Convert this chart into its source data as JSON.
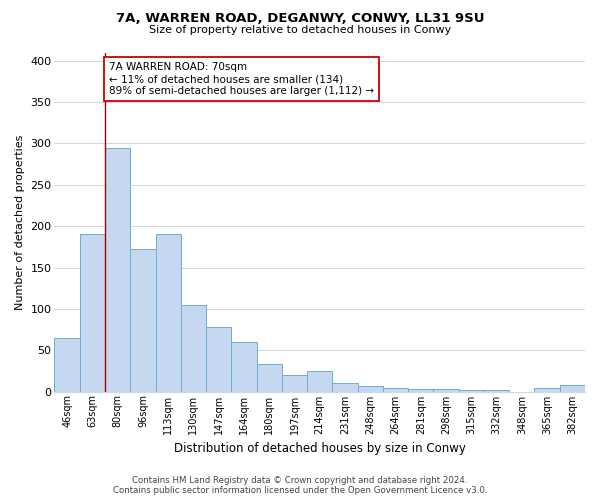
{
  "title": "7A, WARREN ROAD, DEGANWY, CONWY, LL31 9SU",
  "subtitle": "Size of property relative to detached houses in Conwy",
  "xlabel": "Distribution of detached houses by size in Conwy",
  "ylabel": "Number of detached properties",
  "categories": [
    "46sqm",
    "63sqm",
    "80sqm",
    "96sqm",
    "113sqm",
    "130sqm",
    "147sqm",
    "164sqm",
    "180sqm",
    "197sqm",
    "214sqm",
    "231sqm",
    "248sqm",
    "264sqm",
    "281sqm",
    "298sqm",
    "315sqm",
    "332sqm",
    "348sqm",
    "365sqm",
    "382sqm"
  ],
  "values": [
    65,
    190,
    295,
    172,
    190,
    105,
    78,
    60,
    33,
    20,
    25,
    10,
    7,
    5,
    3,
    3,
    2,
    2,
    0,
    5,
    8
  ],
  "bar_color": "#c5d8ef",
  "bar_edge_color": "#6baed6",
  "vline_x_index": 1,
  "vline_color": "#aa0000",
  "annotation_line1": "7A WARREN ROAD: 70sqm",
  "annotation_line2": "← 11% of detached houses are smaller (134)",
  "annotation_line3": "89% of semi-detached houses are larger (1,112) →",
  "annotation_box_color": "#ffffff",
  "annotation_box_edge": "#cc0000",
  "ylim": [
    0,
    410
  ],
  "yticks": [
    0,
    50,
    100,
    150,
    200,
    250,
    300,
    350,
    400
  ],
  "background_color": "#ffffff",
  "grid_color": "#d0d8e8",
  "footer_line1": "Contains HM Land Registry data © Crown copyright and database right 2024.",
  "footer_line2": "Contains public sector information licensed under the Open Government Licence v3.0."
}
